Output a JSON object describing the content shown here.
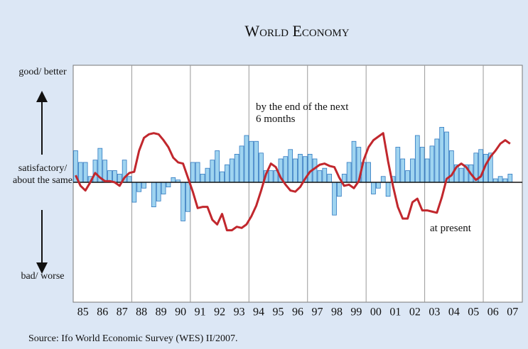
{
  "chart_data": {
    "type": "bar",
    "title": "World Economy",
    "y_labels": [
      "good/ better",
      "satisfactory/ about the same",
      "bad/ worse"
    ],
    "x_labels": [
      "85",
      "86",
      "87",
      "88",
      "89",
      "90",
      "91",
      "92",
      "93",
      "94",
      "95",
      "96",
      "97",
      "98",
      "99",
      "00",
      "01",
      "02",
      "03",
      "04",
      "05",
      "06",
      "07"
    ],
    "ylim": [
      -100,
      100
    ],
    "series": [
      {
        "name": "by the end of the next 6 months",
        "type": "bar",
        "color": "#9fd4f0",
        "edge": "#2f78c0",
        "values": [
          27,
          17,
          17,
          5,
          19,
          29,
          19,
          10,
          10,
          7,
          19,
          5,
          -17,
          -8,
          -5,
          0,
          -21,
          -16,
          -10,
          -4,
          4,
          2,
          -33,
          -25,
          17,
          17,
          7,
          12,
          19,
          27,
          9,
          15,
          20,
          24,
          31,
          40,
          35,
          35,
          25,
          10,
          10,
          10,
          20,
          22,
          28,
          20,
          24,
          22,
          24,
          20,
          10,
          12,
          7,
          -28,
          -12,
          7,
          17,
          35,
          30,
          17,
          17,
          -10,
          -5,
          5,
          -12,
          5,
          30,
          20,
          10,
          20,
          40,
          30,
          20,
          31,
          37,
          47,
          43,
          27,
          15,
          12,
          15,
          15,
          25,
          28,
          24,
          25,
          3,
          5,
          3,
          7
        ]
      },
      {
        "name": "at present",
        "type": "line",
        "color": "#c1272d",
        "values": [
          6,
          -3,
          -7,
          0,
          8,
          4,
          1,
          1,
          0,
          -3,
          4,
          8,
          9,
          27,
          38,
          41,
          42,
          41,
          36,
          30,
          21,
          17,
          16,
          4,
          -8,
          -22,
          -21,
          -21,
          -32,
          -36,
          -27,
          -41,
          -41,
          -38,
          -39,
          -36,
          -29,
          -20,
          -7,
          7,
          16,
          13,
          4,
          -2,
          -7,
          -8,
          -4,
          3,
          9,
          12,
          15,
          16,
          14,
          13,
          4,
          -3,
          -2,
          -5,
          1,
          19,
          30,
          36,
          39,
          42,
          18,
          -3,
          -21,
          -31,
          -31,
          -17,
          -14,
          -24,
          -24,
          -25,
          -26,
          -13,
          3,
          6,
          13,
          16,
          13,
          7,
          2,
          5,
          15,
          22,
          27,
          33,
          36,
          33
        ]
      }
    ],
    "source": "Source: Ifo World Economic Survey (WES) II/2007."
  }
}
